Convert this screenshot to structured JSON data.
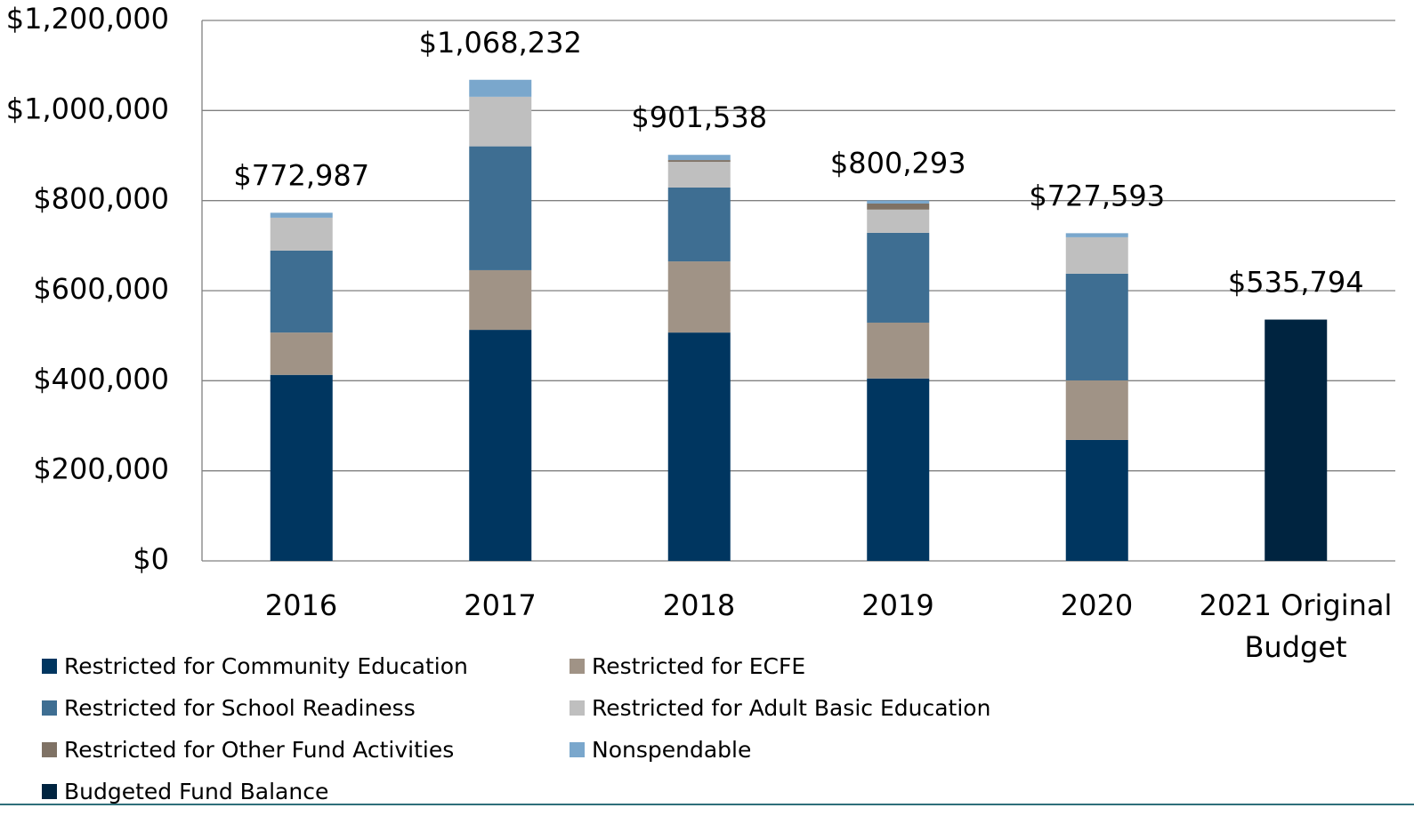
{
  "chart_data": {
    "type": "stacked_bar",
    "categories": [
      "2016",
      "2017",
      "2018",
      "2019",
      "2020",
      "2021 Original Budget"
    ],
    "series": [
      {
        "name": "Restricted for Community Education",
        "color": "#003660",
        "values": [
          413000,
          513000,
          507000,
          405000,
          268500,
          null
        ]
      },
      {
        "name": "Restricted for ECFE",
        "color": "#a09386",
        "values": [
          94000,
          132500,
          158000,
          124000,
          132200,
          null
        ]
      },
      {
        "name": "Restricted for School Readiness",
        "color": "#3e6e92",
        "values": [
          182000,
          275000,
          164000,
          199500,
          236900,
          null
        ]
      },
      {
        "name": "Restricted for Adult Basic Education",
        "color": "#bfbfbf",
        "values": [
          73000,
          110000,
          57000,
          51500,
          81000,
          null
        ]
      },
      {
        "name": "Restricted for Other Fund Activities",
        "color": "#7f7265",
        "values": [
          null,
          null,
          4000,
          13500,
          null,
          null
        ]
      },
      {
        "name": "Nonspendable",
        "color": "#7aa7cc",
        "values": [
          10987,
          37732,
          11538,
          6793,
          8993,
          null
        ]
      },
      {
        "name": "Budgeted Fund Balance",
        "color": "#002440",
        "values": [
          null,
          null,
          null,
          null,
          null,
          535794
        ]
      }
    ],
    "totals": [
      772987,
      1068232,
      901538,
      800293,
      727593,
      535794
    ],
    "total_labels": [
      "$772,987",
      "$1,068,232",
      "$901,538",
      "$800,293",
      "$727,593",
      "$535,794"
    ],
    "ylim": [
      0,
      1200000
    ],
    "yticks": [
      {
        "value": 0,
        "label": "$0"
      },
      {
        "value": 200000,
        "label": "$200,000"
      },
      {
        "value": 400000,
        "label": "$400,000"
      },
      {
        "value": 600000,
        "label": "$600,000"
      },
      {
        "value": 800000,
        "label": "$800,000"
      },
      {
        "value": 1000000,
        "label": "$1,000,000"
      },
      {
        "value": 1200000,
        "label": "$1,200,000"
      }
    ],
    "grid": true
  }
}
